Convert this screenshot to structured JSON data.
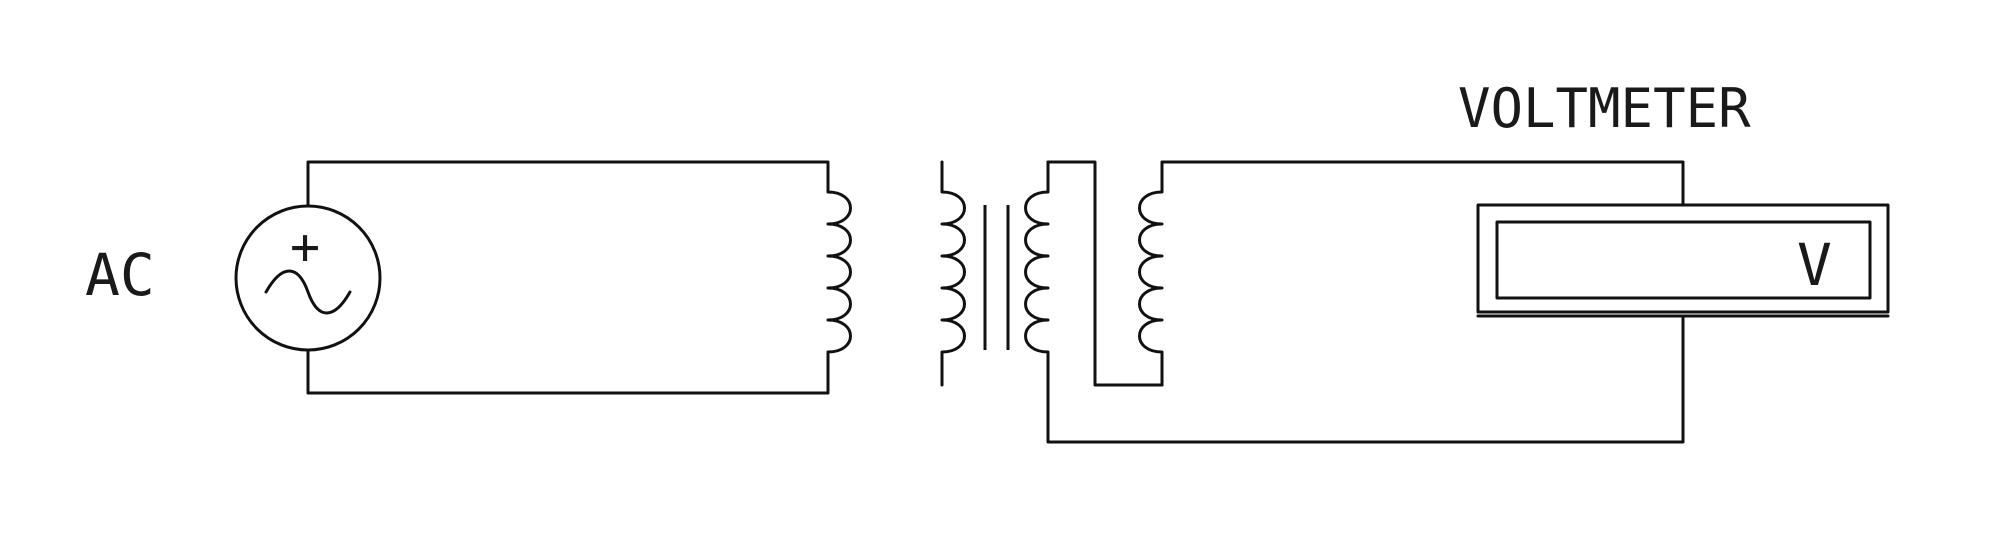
{
  "diagram": {
    "source_label": "AC",
    "source_plus_symbol": "+",
    "meter_title": "VOLTMETER",
    "meter_symbol": "V"
  },
  "colors": {
    "line": "#111111",
    "text": "#1a1a1a",
    "background": "#ffffff"
  }
}
